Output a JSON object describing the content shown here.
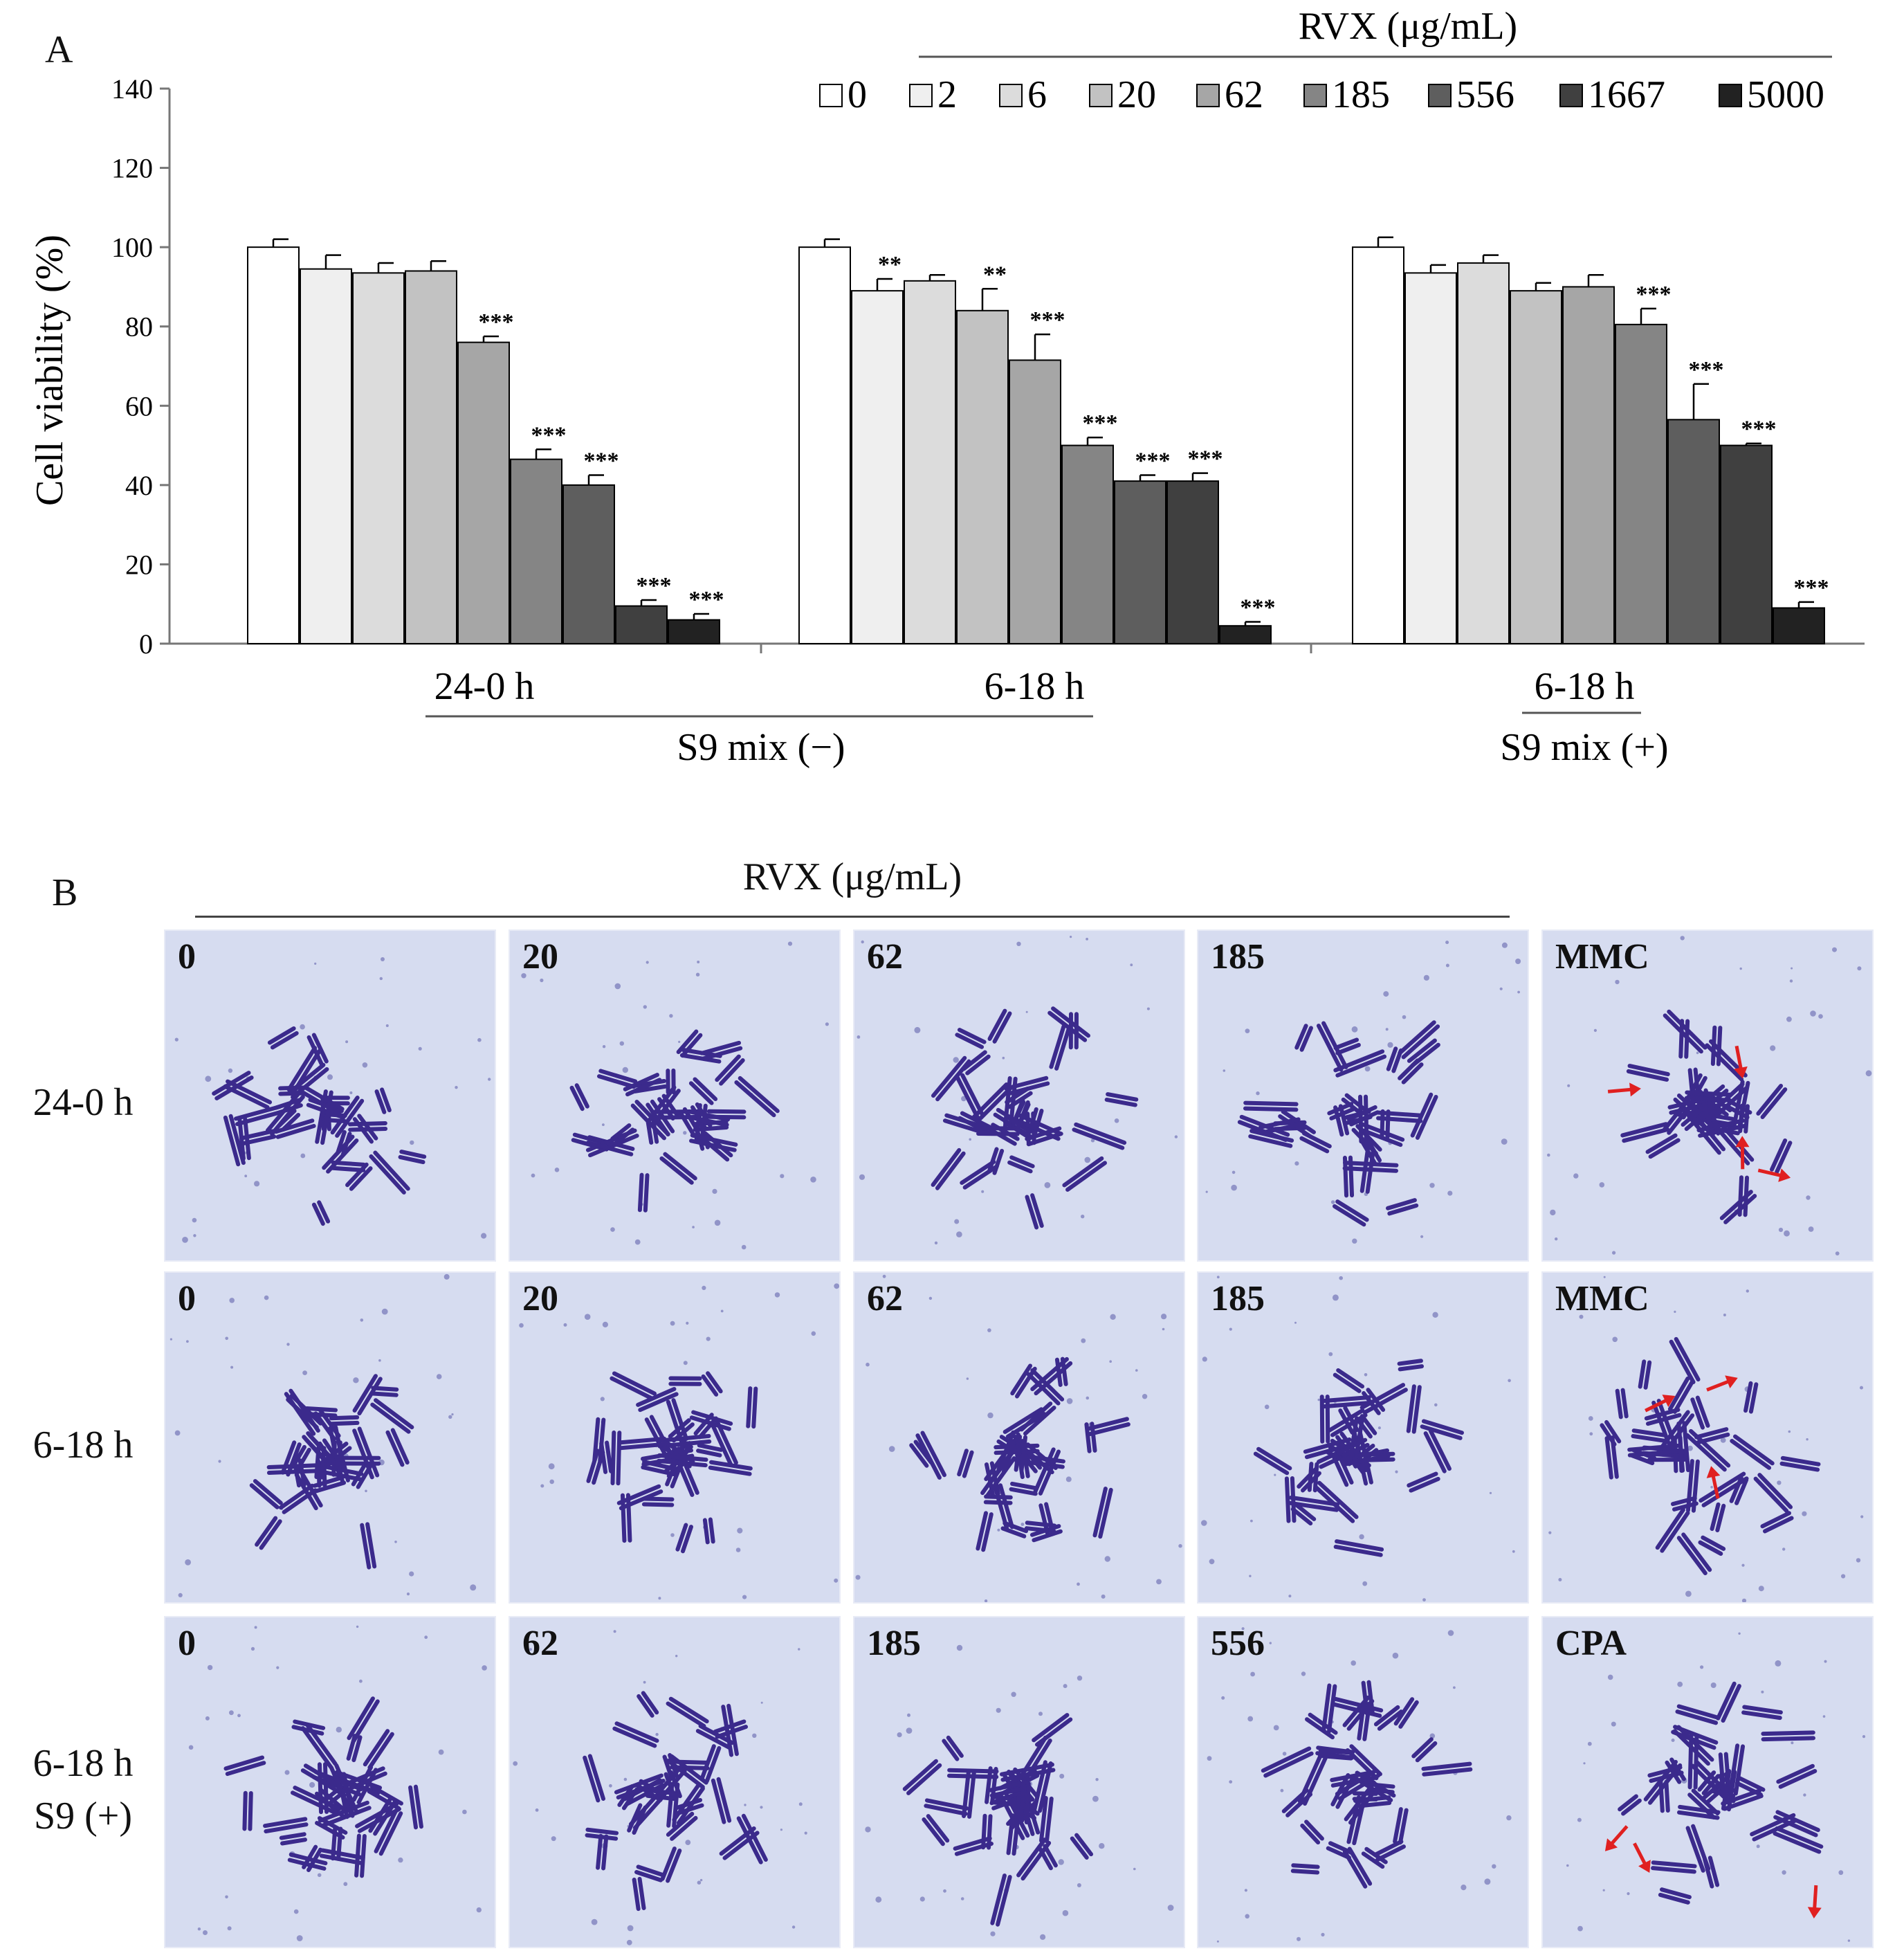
{
  "panel_a": {
    "label": "A"
  },
  "panel_b": {
    "label": "B",
    "header": "RVX (μg/mL)",
    "rows": [
      {
        "label_lines": [
          "24-0 h"
        ],
        "tiles": [
          {
            "label": "0",
            "arrows": 0
          },
          {
            "label": "20",
            "arrows": 0
          },
          {
            "label": "62",
            "arrows": 0
          },
          {
            "label": "185",
            "arrows": 0
          },
          {
            "label": "MMC",
            "arrows": 4
          }
        ]
      },
      {
        "label_lines": [
          "6-18 h"
        ],
        "tiles": [
          {
            "label": "0",
            "arrows": 0
          },
          {
            "label": "20",
            "arrows": 0
          },
          {
            "label": "62",
            "arrows": 0
          },
          {
            "label": "185",
            "arrows": 0
          },
          {
            "label": "MMC",
            "arrows": 3
          }
        ]
      },
      {
        "label_lines": [
          "6-18 h",
          "S9 (+)"
        ],
        "tiles": [
          {
            "label": "0",
            "arrows": 0
          },
          {
            "label": "62",
            "arrows": 0
          },
          {
            "label": "185",
            "arrows": 0
          },
          {
            "label": "556",
            "arrows": 0
          },
          {
            "label": "CPA",
            "arrows": 3
          }
        ]
      }
    ]
  },
  "chart_data": {
    "type": "bar",
    "ylabel": "Cell viability (%)",
    "ylim": [
      0,
      140
    ],
    "yticks": [
      0,
      20,
      40,
      60,
      80,
      100,
      120,
      140
    ],
    "legend_title": "RVX (μg/mL)",
    "legend_position": "top-right",
    "series": [
      {
        "name": "0",
        "color": "#ffffff"
      },
      {
        "name": "2",
        "color": "#efefef"
      },
      {
        "name": "6",
        "color": "#dcdcdc"
      },
      {
        "name": "20",
        "color": "#c2c2c2"
      },
      {
        "name": "62",
        "color": "#a6a6a6"
      },
      {
        "name": "185",
        "color": "#858585"
      },
      {
        "name": "556",
        "color": "#5e5e5e"
      },
      {
        "name": "1667",
        "color": "#404040"
      },
      {
        "name": "5000",
        "color": "#222222"
      }
    ],
    "groups": [
      {
        "label": "24-0 h",
        "values": [
          100,
          94.5,
          93.5,
          94,
          76,
          46.5,
          40,
          9.5,
          6
        ],
        "errors": [
          2,
          3.5,
          2.5,
          2.5,
          1.5,
          2.5,
          2.5,
          1.5,
          1.5
        ],
        "sig": [
          "",
          "",
          "",
          "",
          "***",
          "***",
          "***",
          "***",
          "***"
        ]
      },
      {
        "label": "6-18 h",
        "values": [
          100,
          89,
          91.5,
          84,
          71.5,
          50,
          41,
          41,
          4.5
        ],
        "errors": [
          2,
          3,
          1.5,
          5.5,
          6.5,
          2,
          1.5,
          2,
          1
        ],
        "sig": [
          "",
          "**",
          "",
          "**",
          "***",
          "***",
          "***",
          "***",
          "***"
        ]
      },
      {
        "label": "6-18 h",
        "values": [
          100,
          93.5,
          96,
          89,
          90,
          80.5,
          56.5,
          50,
          9
        ],
        "errors": [
          2.5,
          2,
          2,
          2,
          3,
          4,
          9,
          0.5,
          1.5
        ],
        "sig": [
          "",
          "",
          "",
          "",
          "",
          "***",
          "***",
          "***",
          "***"
        ]
      }
    ],
    "bracket_labels": [
      "S9 mix (−)",
      "S9 mix (+)"
    ]
  }
}
